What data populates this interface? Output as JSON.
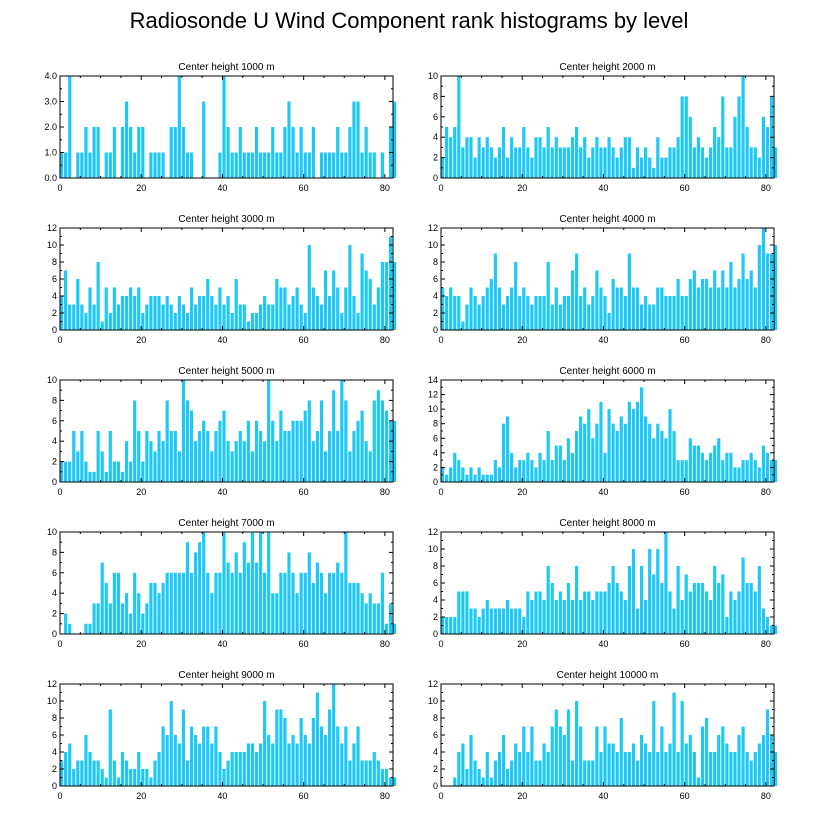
{
  "title": "Radiosonde U Wind Component rank histograms by level",
  "bar_color": "#1ec8f5",
  "chart_data": [
    {
      "type": "bar",
      "title": "Center height 1000 m",
      "x_start": 0,
      "xlim": [
        0,
        82
      ],
      "ylim": [
        0,
        4
      ],
      "xticks": [
        0,
        20,
        40,
        60,
        80
      ],
      "yticks": [
        0,
        1,
        2,
        3,
        4
      ],
      "ytick_labels": [
        "0.0",
        "1.0",
        "2.0",
        "3.0",
        "4.0"
      ],
      "values": [
        1,
        1,
        4,
        0,
        1,
        1,
        2,
        1,
        2,
        2,
        0,
        1,
        1,
        2,
        0,
        2,
        3,
        2,
        1,
        2,
        2,
        0,
        1,
        1,
        1,
        1,
        0,
        2,
        2,
        4,
        2,
        1,
        1,
        0,
        0,
        3,
        0,
        0,
        0,
        1,
        4,
        2,
        1,
        1,
        2,
        1,
        1,
        1,
        2,
        1,
        1,
        1,
        2,
        1,
        1,
        2,
        3,
        2,
        1,
        2,
        1,
        1,
        2,
        0,
        1,
        1,
        1,
        1,
        2,
        1,
        1,
        2,
        3,
        3,
        1,
        2,
        1,
        1,
        0,
        1,
        0,
        2,
        3
      ]
    },
    {
      "type": "bar",
      "title": "Center height 2000 m",
      "x_start": 0,
      "xlim": [
        0,
        82
      ],
      "ylim": [
        0,
        10
      ],
      "xticks": [
        0,
        20,
        40,
        60,
        80
      ],
      "yticks": [
        0,
        2,
        4,
        6,
        8,
        10
      ],
      "ytick_labels": [
        "0",
        "2",
        "4",
        "6",
        "8",
        "10"
      ],
      "values": [
        2,
        5,
        4,
        5,
        10,
        3,
        4,
        4,
        2,
        4,
        3,
        4,
        3,
        2,
        3,
        5,
        2,
        4,
        3,
        3,
        5,
        3,
        2,
        4,
        4,
        3,
        5,
        3,
        4,
        3,
        3,
        3,
        4,
        5,
        3,
        4,
        2,
        3,
        4,
        3,
        3,
        4,
        3,
        2,
        3,
        4,
        4,
        1,
        3,
        2,
        3,
        2,
        1,
        4,
        2,
        2,
        3,
        3,
        4,
        8,
        8,
        6,
        3,
        4,
        3,
        2,
        3,
        5,
        4,
        8,
        3,
        3,
        6,
        8,
        10,
        5,
        3,
        3,
        2,
        6,
        5,
        8,
        3
      ]
    },
    {
      "type": "bar",
      "title": "Center height 3000 m",
      "x_start": 0,
      "xlim": [
        0,
        82
      ],
      "ylim": [
        0,
        12
      ],
      "xticks": [
        0,
        20,
        40,
        60,
        80
      ],
      "yticks": [
        0,
        2,
        4,
        6,
        8,
        10,
        12
      ],
      "ytick_labels": [
        "0",
        "2",
        "4",
        "6",
        "8",
        "10",
        "12"
      ],
      "values": [
        4,
        7,
        3,
        3,
        6,
        3,
        2,
        5,
        3,
        8,
        1,
        5,
        2,
        5,
        3,
        4,
        4,
        5,
        4,
        5,
        2,
        3,
        4,
        4,
        4,
        3,
        4,
        3,
        2,
        4,
        3,
        2,
        5,
        3,
        4,
        4,
        6,
        4,
        3,
        5,
        3,
        4,
        2,
        6,
        3,
        3,
        1,
        2,
        2,
        3,
        4,
        3,
        3,
        6,
        5,
        5,
        3,
        4,
        5,
        3,
        2,
        10,
        5,
        4,
        3,
        7,
        4,
        7,
        5,
        2,
        5,
        10,
        4,
        2,
        9,
        7,
        6,
        3,
        5,
        8,
        8,
        11,
        8
      ]
    },
    {
      "type": "bar",
      "title": "Center height 4000 m",
      "x_start": 0,
      "xlim": [
        0,
        82
      ],
      "ylim": [
        0,
        12
      ],
      "xticks": [
        0,
        20,
        40,
        60,
        80
      ],
      "yticks": [
        0,
        2,
        4,
        6,
        8,
        10,
        12
      ],
      "ytick_labels": [
        "0",
        "2",
        "4",
        "6",
        "8",
        "10",
        "12"
      ],
      "values": [
        5,
        4,
        5,
        4,
        4,
        1,
        3,
        5,
        4,
        3,
        4,
        5,
        6,
        9,
        5,
        3,
        4,
        5,
        8,
        4,
        5,
        4,
        3,
        4,
        4,
        4,
        8,
        3,
        5,
        3,
        4,
        4,
        7,
        9,
        4,
        5,
        3,
        4,
        7,
        5,
        4,
        2,
        6,
        5,
        5,
        4,
        9,
        5,
        5,
        3,
        4,
        3,
        3,
        5,
        5,
        4,
        4,
        4,
        6,
        4,
        4,
        6,
        7,
        5,
        6,
        6,
        5,
        7,
        5,
        7,
        5,
        8,
        5,
        6,
        9,
        6,
        7,
        5,
        10,
        12,
        9,
        9,
        10
      ]
    },
    {
      "type": "bar",
      "title": "Center height 5000 m",
      "x_start": 0,
      "xlim": [
        0,
        82
      ],
      "ylim": [
        0,
        10
      ],
      "xticks": [
        0,
        20,
        40,
        60,
        80
      ],
      "yticks": [
        0,
        2,
        4,
        6,
        8,
        10
      ],
      "ytick_labels": [
        "0",
        "2",
        "4",
        "6",
        "8",
        "10"
      ],
      "values": [
        2,
        2,
        2,
        5,
        3,
        5,
        2,
        1,
        1,
        5,
        3,
        1,
        5,
        2,
        2,
        1,
        4,
        2,
        8,
        5,
        2,
        5,
        4,
        3,
        5,
        4,
        8,
        5,
        5,
        3,
        10,
        8,
        7,
        4,
        5,
        6,
        5,
        3,
        5,
        6,
        7,
        4,
        3,
        4,
        5,
        4,
        6,
        3,
        6,
        5,
        4,
        10,
        6,
        4,
        7,
        5,
        5,
        6,
        6,
        6,
        7,
        8,
        4,
        5,
        8,
        3,
        5,
        9,
        5,
        10,
        8,
        3,
        5,
        6,
        7,
        4,
        3,
        8,
        9,
        8,
        7,
        6,
        6
      ]
    },
    {
      "type": "bar",
      "title": "Center height 6000 m",
      "x_start": 0,
      "xlim": [
        0,
        82
      ],
      "ylim": [
        0,
        14
      ],
      "xticks": [
        0,
        20,
        40,
        60,
        80
      ],
      "yticks": [
        0,
        2,
        4,
        6,
        8,
        10,
        12,
        14
      ],
      "ytick_labels": [
        "0",
        "2",
        "4",
        "6",
        "8",
        "10",
        "12",
        "14"
      ],
      "values": [
        2,
        1,
        2,
        4,
        3,
        2,
        1,
        2,
        1,
        2,
        1,
        1,
        1,
        3,
        2,
        8,
        9,
        4,
        2,
        3,
        3,
        4,
        3,
        2,
        4,
        3,
        7,
        3,
        5,
        5,
        3,
        6,
        4,
        7,
        9,
        8,
        10,
        6,
        8,
        11,
        4,
        10,
        8,
        7,
        9,
        8,
        11,
        10,
        11,
        13,
        9,
        8,
        6,
        8,
        7,
        6,
        10,
        7,
        3,
        3,
        3,
        6,
        5,
        5,
        4,
        3,
        4,
        5,
        6,
        3,
        4,
        4,
        2,
        2,
        3,
        3,
        4,
        3,
        2,
        5,
        4,
        3,
        3
      ]
    },
    {
      "type": "bar",
      "title": "Center height 7000 m",
      "x_start": 0,
      "xlim": [
        0,
        82
      ],
      "ylim": [
        0,
        10
      ],
      "xticks": [
        0,
        20,
        40,
        60,
        80
      ],
      "yticks": [
        0,
        2,
        4,
        6,
        8,
        10
      ],
      "ytick_labels": [
        "0",
        "2",
        "4",
        "6",
        "8",
        "10"
      ],
      "values": [
        0,
        2,
        1,
        0,
        0,
        0,
        1,
        1,
        3,
        3,
        7,
        5,
        3,
        6,
        6,
        3,
        4,
        2,
        6,
        4,
        2,
        3,
        5,
        5,
        4,
        5,
        6,
        6,
        6,
        6,
        6,
        9,
        6,
        8,
        9,
        10,
        6,
        4,
        6,
        6,
        10,
        7,
        6,
        8,
        6,
        9,
        7,
        10,
        7,
        10,
        6,
        10,
        4,
        4,
        6,
        6,
        8,
        6,
        4,
        6,
        6,
        8,
        5,
        7,
        6,
        4,
        6,
        6,
        7,
        6,
        10,
        5,
        5,
        5,
        4,
        3,
        4,
        3,
        3,
        6,
        1,
        3,
        1
      ]
    },
    {
      "type": "bar",
      "title": "Center height 8000 m",
      "x_start": 0,
      "xlim": [
        0,
        82
      ],
      "ylim": [
        0,
        12
      ],
      "xticks": [
        0,
        20,
        40,
        60,
        80
      ],
      "yticks": [
        0,
        2,
        4,
        6,
        8,
        10,
        12
      ],
      "ytick_labels": [
        "0",
        "2",
        "4",
        "6",
        "8",
        "10",
        "12"
      ],
      "values": [
        2,
        2,
        2,
        2,
        5,
        5,
        5,
        3,
        3,
        2,
        3,
        4,
        3,
        3,
        3,
        3,
        4,
        3,
        3,
        3,
        2,
        5,
        4,
        5,
        5,
        4,
        8,
        6,
        4,
        5,
        4,
        6,
        4,
        8,
        4,
        5,
        5,
        4,
        5,
        5,
        5,
        6,
        8,
        6,
        5,
        4,
        8,
        10,
        3,
        8,
        4,
        10,
        7,
        10,
        6,
        12,
        5,
        3,
        8,
        4,
        7,
        5,
        6,
        6,
        6,
        5,
        4,
        8,
        6,
        7,
        2,
        5,
        4,
        5,
        9,
        6,
        6,
        5,
        8,
        3,
        2,
        1,
        1
      ]
    },
    {
      "type": "bar",
      "title": "Center height 9000 m",
      "x_start": 0,
      "xlim": [
        0,
        82
      ],
      "ylim": [
        0,
        12
      ],
      "xticks": [
        0,
        20,
        40,
        60,
        80
      ],
      "yticks": [
        0,
        2,
        4,
        6,
        8,
        10,
        12
      ],
      "ytick_labels": [
        "0",
        "2",
        "4",
        "6",
        "8",
        "10",
        "12"
      ],
      "values": [
        3,
        4,
        5,
        2,
        3,
        3,
        6,
        4,
        3,
        3,
        2,
        1,
        9,
        3,
        1,
        4,
        3,
        2,
        2,
        4,
        2,
        2,
        1,
        3,
        4,
        7,
        6,
        10,
        6,
        5,
        9,
        3,
        7,
        6,
        5,
        7,
        7,
        5,
        7,
        4,
        2,
        3,
        4,
        4,
        4,
        4,
        5,
        5,
        4,
        5,
        10,
        6,
        5,
        9,
        9,
        8,
        5,
        6,
        5,
        8,
        6,
        5,
        8,
        11,
        7,
        6,
        9,
        12,
        7,
        5,
        7,
        3,
        5,
        7,
        3,
        3,
        3,
        4,
        3,
        2,
        2,
        1,
        1
      ]
    },
    {
      "type": "bar",
      "title": "Center height 10000 m",
      "x_start": 0,
      "xlim": [
        0,
        82
      ],
      "ylim": [
        0,
        12
      ],
      "xticks": [
        0,
        20,
        40,
        60,
        80
      ],
      "yticks": [
        0,
        2,
        4,
        6,
        8,
        10,
        12
      ],
      "ytick_labels": [
        "0",
        "2",
        "4",
        "6",
        "8",
        "10",
        "12"
      ],
      "values": [
        0,
        0,
        0,
        1,
        4,
        5,
        2,
        6,
        3,
        2,
        1,
        4,
        1,
        3,
        4,
        6,
        2,
        3,
        5,
        4,
        7,
        4,
        7,
        3,
        3,
        5,
        4,
        7,
        9,
        7,
        6,
        9,
        3,
        10,
        7,
        3,
        3,
        3,
        7,
        4,
        7,
        5,
        5,
        4,
        8,
        4,
        4,
        5,
        3,
        6,
        5,
        4,
        10,
        4,
        7,
        4,
        5,
        11,
        4,
        10,
        5,
        6,
        4,
        1,
        7,
        8,
        4,
        4,
        6,
        7,
        5,
        4,
        4,
        6,
        7,
        4,
        3,
        4,
        5,
        6,
        9,
        6,
        4
      ]
    }
  ]
}
